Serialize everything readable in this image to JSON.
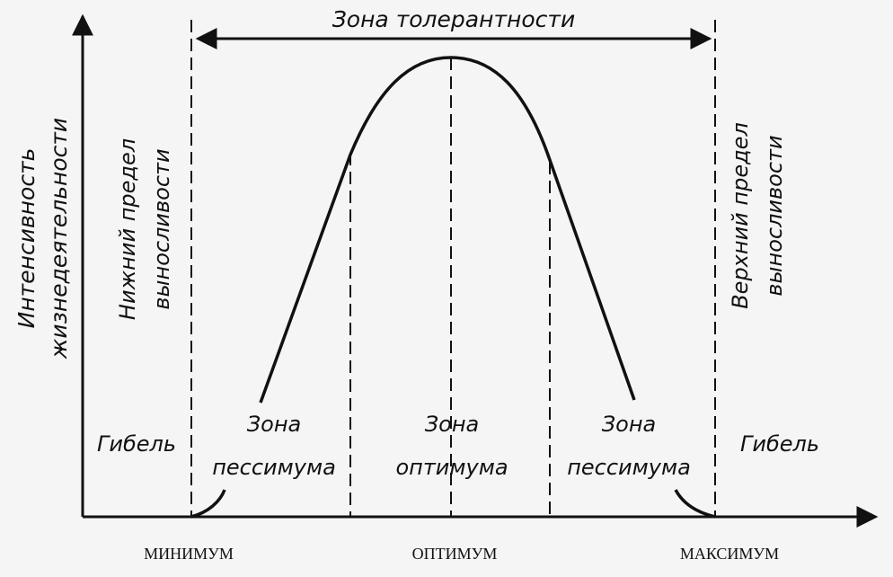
{
  "diagram": {
    "top_label": "Зона толерантности",
    "y_axis_label": [
      "Интенсивность",
      "жизнедеятельности"
    ],
    "lower_limit_label": [
      "Нижний предел",
      "выносливости"
    ],
    "upper_limit_label": [
      "Верхний предел",
      "выносливости"
    ],
    "death_left": "Гибель",
    "death_right": "Гибель",
    "zone_pessimum_left": [
      "Зона",
      "пессимума"
    ],
    "zone_optimum": [
      "Зона",
      "оптимума"
    ],
    "zone_pessimum_right": [
      "Зона",
      "пессимума"
    ],
    "x_labels": {
      "minimum": "МИНИМУМ",
      "optimum": "ОПТИМУМ",
      "maximum": "МАКСИМУМ"
    }
  },
  "colors": {
    "ink": "#111111",
    "background": "#f5f5f5"
  }
}
